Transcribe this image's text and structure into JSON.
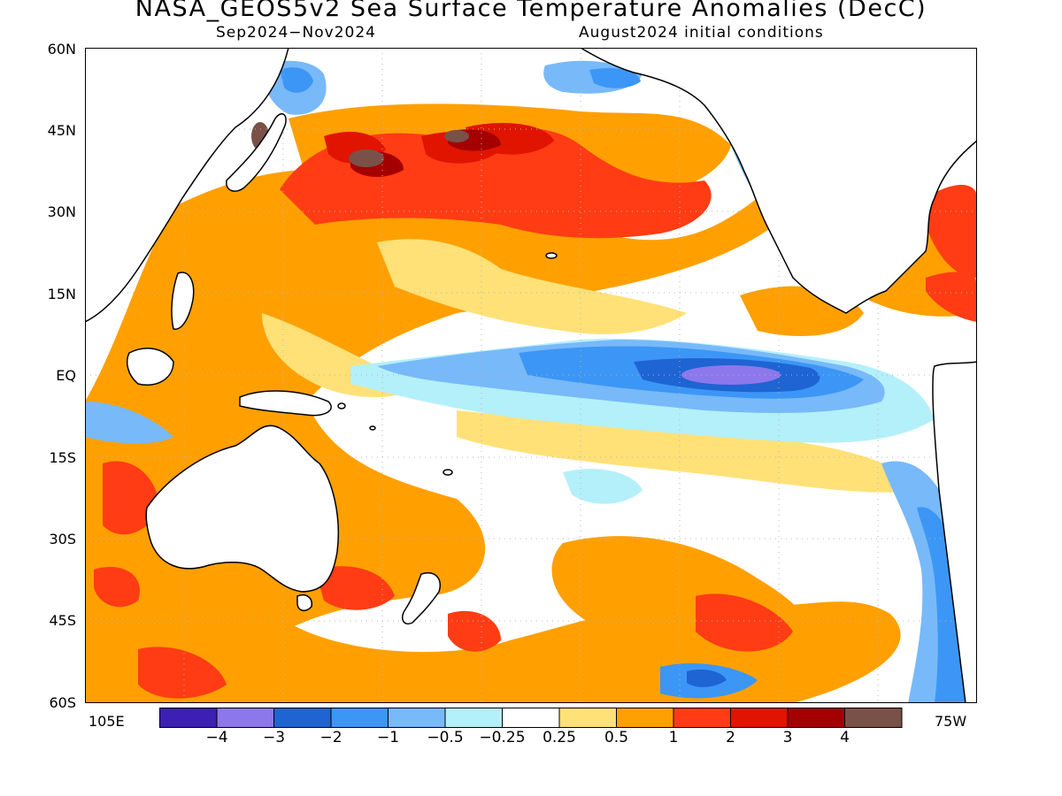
{
  "header": {
    "title": "NASA_GEOS5v2 Sea Surface Temperature Anomalies (DecC)",
    "period": "Sep2024−Nov2024",
    "initial_conditions": "August2024 initial conditions"
  },
  "axes": {
    "lat_labels": [
      "60N",
      "45N",
      "30N",
      "15N",
      "EQ",
      "15S",
      "30S",
      "45S",
      "60S"
    ],
    "lon_left": "105E",
    "lon_right": "75W"
  },
  "colorbar": {
    "colors": [
      "#3c1fb4",
      "#8c78ec",
      "#1e64d2",
      "#3c96f5",
      "#78b9fa",
      "#b4f0fa",
      "#ffffff",
      "#ffe178",
      "#ffa000",
      "#ff3c14",
      "#e11400",
      "#a50000",
      "#7a5148"
    ],
    "labels": [
      "−4",
      "−3",
      "−2",
      "−1",
      "−0.5",
      "−0.25",
      "0.25",
      "0.5",
      "1",
      "2",
      "3",
      "4"
    ]
  }
}
